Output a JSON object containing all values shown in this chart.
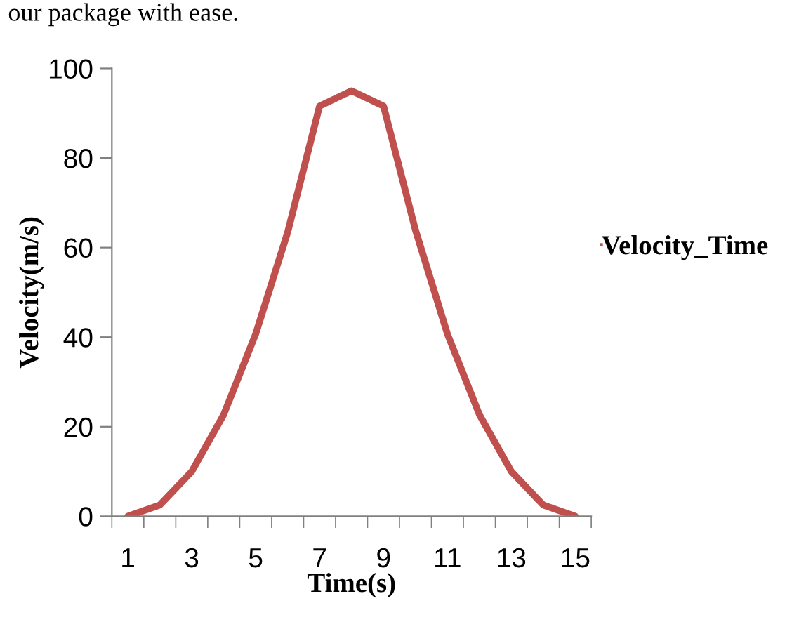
{
  "chart_data": {
    "type": "line",
    "xlabel": "Time(s)",
    "ylabel": "Velocity(m/s)",
    "annotations": [
      "our package with ease."
    ],
    "categories": [
      "1",
      null,
      "3",
      null,
      "5",
      null,
      "7",
      null,
      "9",
      null,
      "11",
      null,
      "13",
      null,
      "15"
    ],
    "series": [
      {
        "name": "Velocity_Time",
        "color": "#c0504d",
        "values": [
          0,
          2.5,
          10,
          22.7,
          40.7,
          63.4,
          91.6,
          95,
          91.6,
          63.9,
          40.7,
          22.7,
          10,
          2.5,
          0
        ]
      }
    ],
    "ylim": [
      0,
      100
    ],
    "yticks": [
      0,
      20,
      40,
      60,
      80,
      100
    ],
    "grid": false,
    "legend": "right",
    "marker": "none",
    "line_style": "solid"
  }
}
